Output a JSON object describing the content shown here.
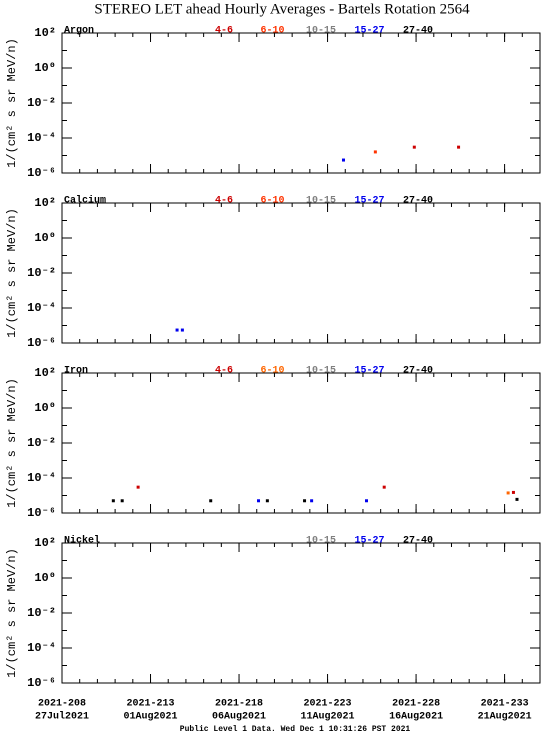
{
  "title": "STEREO LET ahead Hourly Averages - Bartels Rotation 2564",
  "footer": "Public Level 1 Data. Wed Dec  1 10:31:26 PST 2021",
  "chart_data": [
    {
      "type": "scatter",
      "title": "Argon",
      "ylabel": "1/(cm² s sr MeV/n)",
      "log_y": true,
      "xlim": [
        208,
        235
      ],
      "ylim": [
        1e-06,
        100
      ],
      "yticks": [
        {
          "value": 100,
          "label": "10²"
        },
        {
          "value": 1,
          "label": "10⁰"
        },
        {
          "value": 0.01,
          "label": "10⁻²"
        },
        {
          "value": 0.0001,
          "label": "10⁻⁴"
        },
        {
          "value": 1e-06,
          "label": "10⁻⁶"
        }
      ],
      "series": [
        {
          "name": "4-6",
          "color": "#cc0000",
          "x": [
            227.9,
            230.4
          ],
          "values": [
            3e-05,
            3e-05
          ]
        },
        {
          "name": "6-10",
          "color": "#ff3300",
          "x": [
            225.7
          ],
          "values": [
            1.6e-05
          ]
        },
        {
          "name": "10-15",
          "color": "#808080",
          "x": [],
          "values": []
        },
        {
          "name": "15-27",
          "color": "#0000ee",
          "x": [
            223.9
          ],
          "values": [
            5.5e-06
          ]
        },
        {
          "name": "27-40",
          "color": "#000000",
          "x": [],
          "values": []
        }
      ]
    },
    {
      "type": "scatter",
      "title": "Calcium",
      "ylabel": "1/(cm² s sr MeV/n)",
      "log_y": true,
      "xlim": [
        208,
        235
      ],
      "ylim": [
        1e-06,
        100
      ],
      "yticks": [
        {
          "value": 100,
          "label": "10²"
        },
        {
          "value": 1,
          "label": "10⁰"
        },
        {
          "value": 0.01,
          "label": "10⁻²"
        },
        {
          "value": 0.0001,
          "label": "10⁻⁴"
        },
        {
          "value": 1e-06,
          "label": "10⁻⁶"
        }
      ],
      "series": [
        {
          "name": "4-6",
          "color": "#cc0000",
          "x": [],
          "values": []
        },
        {
          "name": "6-10",
          "color": "#ff3300",
          "x": [],
          "values": []
        },
        {
          "name": "10-15",
          "color": "#808080",
          "x": [],
          "values": []
        },
        {
          "name": "15-27",
          "color": "#0000ee",
          "x": [
            214.5,
            214.8
          ],
          "values": [
            5.5e-06,
            5.5e-06
          ]
        },
        {
          "name": "27-40",
          "color": "#000000",
          "x": [],
          "values": []
        }
      ]
    },
    {
      "type": "scatter",
      "title": "Iron",
      "ylabel": "1/(cm² s sr MeV/n)",
      "log_y": true,
      "xlim": [
        208,
        235
      ],
      "ylim": [
        1e-06,
        100
      ],
      "yticks": [
        {
          "value": 100,
          "label": "10²"
        },
        {
          "value": 1,
          "label": "10⁰"
        },
        {
          "value": 0.01,
          "label": "10⁻²"
        },
        {
          "value": 0.0001,
          "label": "10⁻⁴"
        },
        {
          "value": 1e-06,
          "label": "10⁻⁶"
        }
      ],
      "series": [
        {
          "name": "4-6",
          "color": "#cc0000",
          "x": [
            212.3,
            226.2,
            233.5
          ],
          "values": [
            3e-05,
            3e-05,
            1.5e-05
          ]
        },
        {
          "name": "6-10",
          "color": "#ff6600",
          "x": [
            233.2
          ],
          "values": [
            1.4e-05
          ]
        },
        {
          "name": "10-15",
          "color": "#808080",
          "x": [],
          "values": []
        },
        {
          "name": "15-27",
          "color": "#0000ee",
          "x": [
            219.1,
            222.1,
            225.2
          ],
          "values": [
            5e-06,
            5e-06,
            5e-06
          ]
        },
        {
          "name": "27-40",
          "color": "#000000",
          "x": [
            210.9,
            211.4,
            216.4,
            219.6,
            221.7,
            233.7
          ],
          "values": [
            5e-06,
            5e-06,
            5e-06,
            5e-06,
            5e-06,
            6e-06
          ]
        }
      ]
    },
    {
      "type": "scatter",
      "title": "Nickel",
      "ylabel": "1/(cm² s sr MeV/n)",
      "log_y": true,
      "xlim": [
        208,
        235
      ],
      "ylim": [
        1e-06,
        100
      ],
      "yticks": [
        {
          "value": 100,
          "label": "10²"
        },
        {
          "value": 1,
          "label": "10⁰"
        },
        {
          "value": 0.01,
          "label": "10⁻²"
        },
        {
          "value": 0.0001,
          "label": "10⁻⁴"
        },
        {
          "value": 1e-06,
          "label": "10⁻⁶"
        }
      ],
      "xticks": [
        {
          "value": 208,
          "label": "2021-208"
        },
        {
          "value": 213,
          "label": "2021-213"
        },
        {
          "value": 218,
          "label": "2021-218"
        },
        {
          "value": 223,
          "label": "2021-223"
        },
        {
          "value": 228,
          "label": "2021-228"
        },
        {
          "value": 233,
          "label": "2021-233"
        }
      ],
      "xtick_dates": [
        "27Jul2021",
        "01Aug2021",
        "06Aug2021",
        "11Aug2021",
        "16Aug2021",
        "21Aug2021"
      ],
      "series": [
        {
          "name": "10-15",
          "color": "#808080",
          "x": [],
          "values": []
        },
        {
          "name": "15-27",
          "color": "#0000ee",
          "x": [],
          "values": []
        },
        {
          "name": "27-40",
          "color": "#000000",
          "x": [],
          "values": []
        }
      ]
    }
  ]
}
